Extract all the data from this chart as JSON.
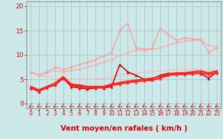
{
  "xlabel": "Vent moyen/en rafales ( km/h )",
  "background_color": "#cce8e8",
  "grid_color": "#aacccc",
  "x_ticks": [
    0,
    1,
    2,
    3,
    4,
    5,
    6,
    7,
    8,
    9,
    10,
    11,
    12,
    13,
    14,
    15,
    16,
    17,
    18,
    19,
    20,
    21,
    22,
    23
  ],
  "ylim": [
    -1.0,
    21.0
  ],
  "xlim": [
    -0.5,
    23.5
  ],
  "yticks": [
    0,
    5,
    10,
    15,
    20
  ],
  "series": [
    {
      "x": [
        0,
        1,
        2,
        3,
        4,
        5,
        6,
        7,
        8,
        9,
        10,
        11,
        12,
        13,
        14,
        15,
        16,
        17,
        18,
        19,
        20,
        21,
        22,
        23
      ],
      "y": [
        6.5,
        5.8,
        5.5,
        5.2,
        5.0,
        5.0,
        5.0,
        5.0,
        5.0,
        5.2,
        5.5,
        5.8,
        6.0,
        6.2,
        6.5,
        6.5,
        6.7,
        6.8,
        7.0,
        7.0,
        7.0,
        7.0,
        7.0,
        7.0
      ],
      "color": "#ffbbbb",
      "lw": 1.0,
      "marker": null
    },
    {
      "x": [
        0,
        1,
        2,
        3,
        4,
        5,
        6,
        7,
        8,
        9,
        10,
        11,
        12,
        13,
        14,
        15,
        16,
        17,
        18,
        19,
        20,
        21,
        22,
        23
      ],
      "y": [
        6.5,
        6.0,
        6.3,
        6.8,
        6.5,
        6.8,
        7.0,
        7.5,
        8.0,
        8.5,
        9.0,
        10.0,
        10.5,
        11.0,
        11.0,
        11.2,
        11.5,
        12.0,
        12.5,
        12.8,
        13.0,
        13.0,
        12.0,
        11.5
      ],
      "color": "#ffaaaa",
      "lw": 1.0,
      "marker": "o",
      "markersize": 2.0
    },
    {
      "x": [
        0,
        1,
        2,
        3,
        4,
        5,
        6,
        7,
        8,
        9,
        10,
        11,
        12,
        13,
        14,
        15,
        16,
        17,
        18,
        19,
        20,
        21,
        22,
        23
      ],
      "y": [
        6.5,
        5.8,
        6.5,
        7.5,
        7.0,
        7.5,
        8.0,
        8.5,
        9.0,
        9.8,
        10.5,
        15.0,
        16.5,
        11.5,
        11.2,
        11.3,
        15.5,
        14.2,
        13.0,
        13.5,
        13.3,
        13.2,
        10.5,
        11.5
      ],
      "color": "#ff9999",
      "lw": 1.0,
      "marker": "o",
      "markersize": 2.0
    },
    {
      "x": [
        0,
        1,
        2,
        3,
        4,
        5,
        6,
        7,
        8,
        9,
        10,
        11,
        12,
        13,
        14,
        15,
        16,
        17,
        18,
        19,
        20,
        21,
        22,
        23
      ],
      "y": [
        3.2,
        2.5,
        3.3,
        3.8,
        5.2,
        3.5,
        3.2,
        3.0,
        3.2,
        3.2,
        3.5,
        8.0,
        6.5,
        5.8,
        5.0,
        5.0,
        5.8,
        6.2,
        6.2,
        6.2,
        6.2,
        6.2,
        5.2,
        6.5
      ],
      "color": "#cc0000",
      "lw": 1.2,
      "marker": "^",
      "markersize": 2.5
    },
    {
      "x": [
        0,
        1,
        2,
        3,
        4,
        5,
        6,
        7,
        8,
        9,
        10,
        11,
        12,
        13,
        14,
        15,
        16,
        17,
        18,
        19,
        20,
        21,
        22,
        23
      ],
      "y": [
        3.2,
        2.5,
        3.3,
        3.8,
        5.2,
        3.8,
        3.5,
        3.3,
        3.3,
        3.3,
        3.8,
        4.0,
        4.3,
        4.5,
        4.7,
        4.8,
        5.2,
        5.8,
        6.0,
        6.0,
        6.2,
        6.3,
        6.0,
        6.3
      ],
      "color": "#ff2222",
      "lw": 1.5,
      "marker": "^",
      "markersize": 2.5
    },
    {
      "x": [
        0,
        1,
        2,
        3,
        4,
        5,
        6,
        7,
        8,
        9,
        10,
        11,
        12,
        13,
        14,
        15,
        16,
        17,
        18,
        19,
        20,
        21,
        22,
        23
      ],
      "y": [
        3.5,
        2.8,
        3.5,
        4.2,
        5.5,
        4.0,
        3.8,
        3.5,
        3.5,
        3.5,
        4.0,
        4.3,
        4.6,
        4.8,
        5.0,
        5.2,
        5.6,
        6.0,
        6.3,
        6.3,
        6.5,
        6.7,
        6.3,
        6.7
      ],
      "color": "#ff2222",
      "lw": 1.5,
      "marker": "^",
      "markersize": 2.5
    }
  ],
  "arrow_color": "#cc0000",
  "tick_color": "#cc0000",
  "axis_color": "#888888",
  "label_color": "#cc0000",
  "ytick_fontsize": 6.5,
  "xtick_fontsize": 5.5,
  "label_fontsize": 7.5
}
